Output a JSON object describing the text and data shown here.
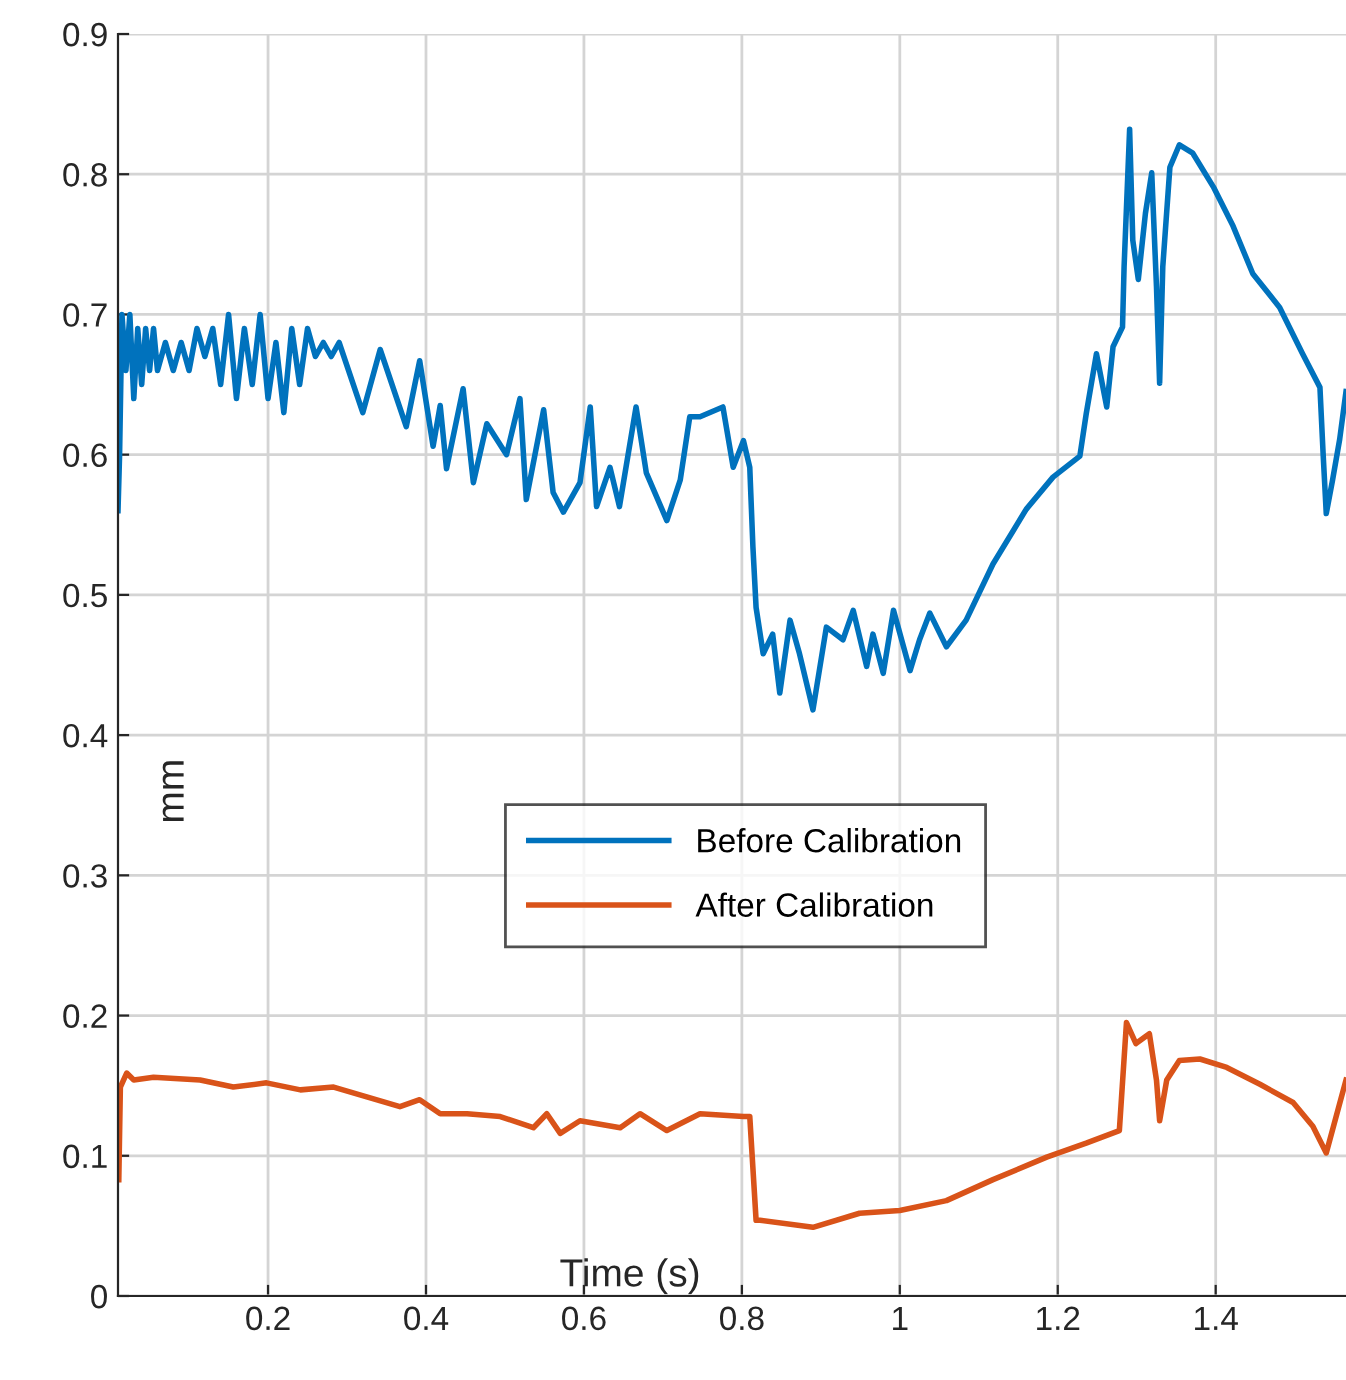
{
  "chart_data": {
    "type": "line",
    "xlabel": "Time (s)",
    "ylabel": "mm",
    "xlim": [
      0.01,
      1.565
    ],
    "xticks": [
      0.2,
      0.4,
      0.6,
      0.8,
      1,
      1.2,
      1.4
    ],
    "ylim": [
      0,
      0.9
    ],
    "yticks": [
      0,
      0.1,
      0.2,
      0.3,
      0.4,
      0.5,
      0.6,
      0.7,
      0.8,
      0.9
    ],
    "grid": true,
    "legend": "center",
    "marker": "none",
    "line_style": "solid",
    "series": [
      {
        "name": "Before Calibration",
        "color": "#0072bd",
        "x": [
          0.01,
          0.012,
          0.015,
          0.02,
          0.025,
          0.03,
          0.035,
          0.04,
          0.045,
          0.05,
          0.055,
          0.06,
          0.07,
          0.08,
          0.09,
          0.1,
          0.11,
          0.12,
          0.13,
          0.14,
          0.15,
          0.16,
          0.17,
          0.18,
          0.19,
          0.2,
          0.21,
          0.22,
          0.23,
          0.24,
          0.25,
          0.26,
          0.27,
          0.28,
          0.29,
          0.32,
          0.342,
          0.375,
          0.392,
          0.409,
          0.418,
          0.426,
          0.447,
          0.46,
          0.477,
          0.502,
          0.519,
          0.527,
          0.549,
          0.561,
          0.574,
          0.595,
          0.608,
          0.616,
          0.633,
          0.645,
          0.666,
          0.679,
          0.705,
          0.722,
          0.734,
          0.747,
          0.776,
          0.789,
          0.802,
          0.81,
          0.814,
          0.818,
          0.827,
          0.839,
          0.848,
          0.861,
          0.873,
          0.89,
          0.907,
          0.928,
          0.941,
          0.958,
          0.966,
          0.979,
          0.992,
          1.013,
          1.025,
          1.038,
          1.059,
          1.084,
          1.118,
          1.16,
          1.194,
          1.228,
          1.236,
          1.249,
          1.262,
          1.27,
          1.282,
          1.284,
          1.291,
          1.295,
          1.302,
          1.311,
          1.319,
          1.325,
          1.329,
          1.333,
          1.342,
          1.354,
          1.371,
          1.397,
          1.422,
          1.447,
          1.481,
          1.51,
          1.532,
          1.536,
          1.54,
          1.548,
          1.557,
          1.565
        ],
        "values": [
          0.56,
          0.6,
          0.7,
          0.66,
          0.7,
          0.64,
          0.69,
          0.65,
          0.69,
          0.66,
          0.69,
          0.66,
          0.68,
          0.66,
          0.68,
          0.66,
          0.69,
          0.67,
          0.69,
          0.65,
          0.7,
          0.64,
          0.69,
          0.65,
          0.7,
          0.64,
          0.68,
          0.63,
          0.69,
          0.65,
          0.69,
          0.67,
          0.68,
          0.67,
          0.68,
          0.63,
          0.675,
          0.62,
          0.667,
          0.606,
          0.635,
          0.59,
          0.647,
          0.58,
          0.622,
          0.6,
          0.64,
          0.568,
          0.632,
          0.573,
          0.559,
          0.58,
          0.634,
          0.563,
          0.591,
          0.563,
          0.634,
          0.587,
          0.553,
          0.582,
          0.627,
          0.627,
          0.634,
          0.591,
          0.61,
          0.591,
          0.534,
          0.491,
          0.458,
          0.472,
          0.43,
          0.482,
          0.458,
          0.418,
          0.477,
          0.468,
          0.489,
          0.449,
          0.472,
          0.444,
          0.489,
          0.446,
          0.468,
          0.487,
          0.463,
          0.482,
          0.522,
          0.561,
          0.584,
          0.599,
          0.629,
          0.672,
          0.634,
          0.677,
          0.691,
          0.734,
          0.832,
          0.753,
          0.725,
          0.772,
          0.801,
          0.72,
          0.651,
          0.734,
          0.805,
          0.821,
          0.815,
          0.791,
          0.763,
          0.729,
          0.705,
          0.672,
          0.648,
          0.601,
          0.558,
          0.582,
          0.611,
          0.645
        ]
      },
      {
        "name": "After Calibration",
        "color": "#d95319",
        "x": [
          0.011,
          0.013,
          0.021,
          0.03,
          0.055,
          0.114,
          0.156,
          0.198,
          0.241,
          0.283,
          0.325,
          0.367,
          0.392,
          0.418,
          0.452,
          0.494,
          0.536,
          0.553,
          0.57,
          0.595,
          0.646,
          0.671,
          0.705,
          0.747,
          0.802,
          0.81,
          0.818,
          0.823,
          0.89,
          0.949,
          1.0,
          1.059,
          1.118,
          1.186,
          1.236,
          1.278,
          1.287,
          1.299,
          1.316,
          1.325,
          1.329,
          1.338,
          1.354,
          1.38,
          1.414,
          1.456,
          1.498,
          1.523,
          1.54,
          1.565
        ],
        "values": [
          0.083,
          0.149,
          0.159,
          0.154,
          0.156,
          0.154,
          0.149,
          0.152,
          0.147,
          0.149,
          0.142,
          0.135,
          0.14,
          0.13,
          0.13,
          0.128,
          0.12,
          0.13,
          0.116,
          0.125,
          0.12,
          0.13,
          0.118,
          0.13,
          0.128,
          0.128,
          0.054,
          0.054,
          0.049,
          0.059,
          0.061,
          0.068,
          0.083,
          0.099,
          0.109,
          0.118,
          0.195,
          0.18,
          0.187,
          0.154,
          0.125,
          0.154,
          0.168,
          0.169,
          0.163,
          0.151,
          0.138,
          0.121,
          0.102,
          0.154
        ]
      }
    ]
  }
}
